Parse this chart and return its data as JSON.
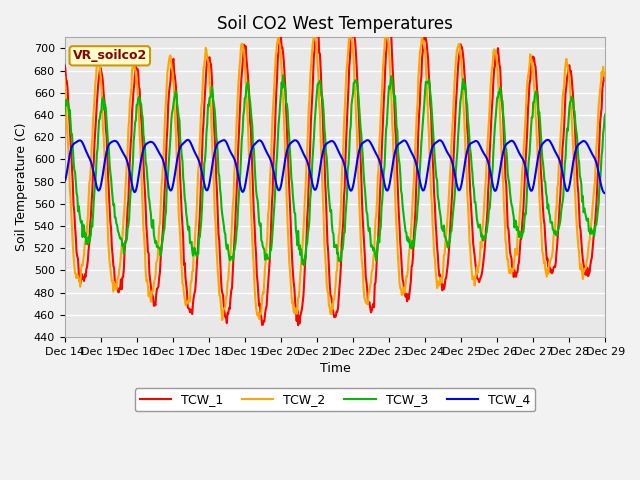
{
  "title": "Soil CO2 West Temperatures",
  "xlabel": "Time",
  "ylabel": "Soil Temperature (C)",
  "annotation": "VR_soilco2",
  "ylim": [
    440,
    710
  ],
  "yticks": [
    440,
    460,
    480,
    500,
    520,
    540,
    560,
    580,
    600,
    620,
    640,
    660,
    680,
    700
  ],
  "xlim": [
    0,
    360
  ],
  "xtick_labels": [
    "Dec 14",
    "Dec 15",
    "Dec 16",
    "Dec 17",
    "Dec 18",
    "Dec 19",
    "Dec 20",
    "Dec 21",
    "Dec 22",
    "Dec 23",
    "Dec 24",
    "Dec 25",
    "Dec 26",
    "Dec 27",
    "Dec 28",
    "Dec 29"
  ],
  "xtick_positions": [
    0,
    24,
    48,
    72,
    96,
    120,
    144,
    168,
    192,
    216,
    240,
    264,
    288,
    312,
    336,
    360
  ],
  "series_colors": [
    "#ff0000",
    "#ffa500",
    "#00bb00",
    "#0000ff"
  ],
  "series_labels": [
    "TCW_1",
    "TCW_2",
    "TCW_3",
    "TCW_4"
  ],
  "plot_bg_color": "#e8e8e8",
  "fig_bg_color": "#f2f2f2",
  "grid_color": "#ffffff",
  "linewidth": 1.5,
  "title_fontsize": 12,
  "axis_fontsize": 9,
  "tick_fontsize": 8,
  "legend_fontsize": 9
}
